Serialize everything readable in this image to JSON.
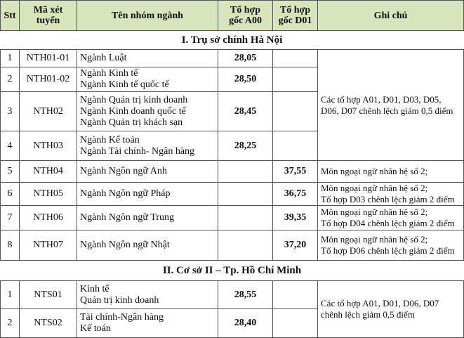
{
  "header": {
    "stt": "Stt",
    "code_l1": "Mã xét",
    "code_l2": "tuyển",
    "name": "Tên nhóm ngành",
    "a00_l1": "Tổ hợp",
    "a00_l2": "gốc A00",
    "d01_l1": "Tổ hợp",
    "d01_l2": "gốc D01",
    "note": "Ghi chú"
  },
  "colors": {
    "header_bg": "#d8e4bc"
  },
  "sections": [
    {
      "title": "I.  Trụ sở chính Hà Nội",
      "group_notes": [
        "Các tổ hợp A01, D01, D03, D05,",
        "D06, D07 chênh lệch giảm 0,5 điểm"
      ],
      "rows": [
        {
          "stt": "1",
          "code": "NTH01-01",
          "names": [
            "Ngành Luật"
          ],
          "a00": "28,05",
          "d01": ""
        },
        {
          "stt": "2",
          "code": "NTH01-02",
          "names": [
            "Ngành Kinh tế",
            "Ngành Kinh tế quốc tế"
          ],
          "a00": "28,50",
          "d01": ""
        },
        {
          "stt": "3",
          "code": "NTH02",
          "names": [
            "Ngành Quản trị kinh doanh",
            "Ngành Kinh doanh quốc tế",
            "Ngành Quản trị khách sạn"
          ],
          "a00": "28,45",
          "d01": ""
        },
        {
          "stt": "4",
          "code": "NTH03",
          "names": [
            "Ngành Kế toán",
            "Ngành Tài chính- Ngân hàng"
          ],
          "a00": "28,25",
          "d01": ""
        },
        {
          "stt": "5",
          "code": "NTH04",
          "names": [
            "Ngành Ngôn ngữ Anh"
          ],
          "a00": "",
          "d01": "37,55",
          "notes": [
            "Môn ngoại ngữ nhân hệ số 2;"
          ]
        },
        {
          "stt": "6",
          "code": "NTH05",
          "names": [
            "Ngành Ngôn ngữ Pháp"
          ],
          "a00": "",
          "d01": "36,75",
          "notes": [
            "Môn ngoại ngữ nhân hệ số 2;",
            "Tổ hợp D03 chênh lệch giảm 2 điểm"
          ]
        },
        {
          "stt": "7",
          "code": "NTH06",
          "names": [
            "Ngành Ngôn ngữ Trung"
          ],
          "a00": "",
          "d01": "39,35",
          "notes": [
            "Môn ngoại ngữ nhân hệ số 2;",
            "Tổ hợp D04 chênh lệch giảm 2 điểm"
          ]
        },
        {
          "stt": "8",
          "code": "NTH07",
          "names": [
            "Ngành Ngôn ngữ Nhật"
          ],
          "a00": "",
          "d01": "37,20",
          "notes": [
            "Môn ngoại ngữ nhân hệ số 2;",
            "Tổ hợp D06 chênh lệch giảm 2 điểm"
          ]
        }
      ]
    },
    {
      "title": "II. Cơ sở II – Tp. Hồ Chí Minh",
      "group_notes": [
        "Các tổ hợp A01, D01, D06, D07",
        "chênh lệch giảm 0,5 điểm"
      ],
      "rows": [
        {
          "stt": "1",
          "code": "NTS01",
          "names": [
            "Kinh tế",
            "Quản trị kinh doanh"
          ],
          "a00": "28,55",
          "d01": ""
        },
        {
          "stt": "2",
          "code": "NTS02",
          "names": [
            "Tài chính-Ngân hàng",
            "Kế toán"
          ],
          "a00": "28,40",
          "d01": ""
        }
      ]
    }
  ]
}
